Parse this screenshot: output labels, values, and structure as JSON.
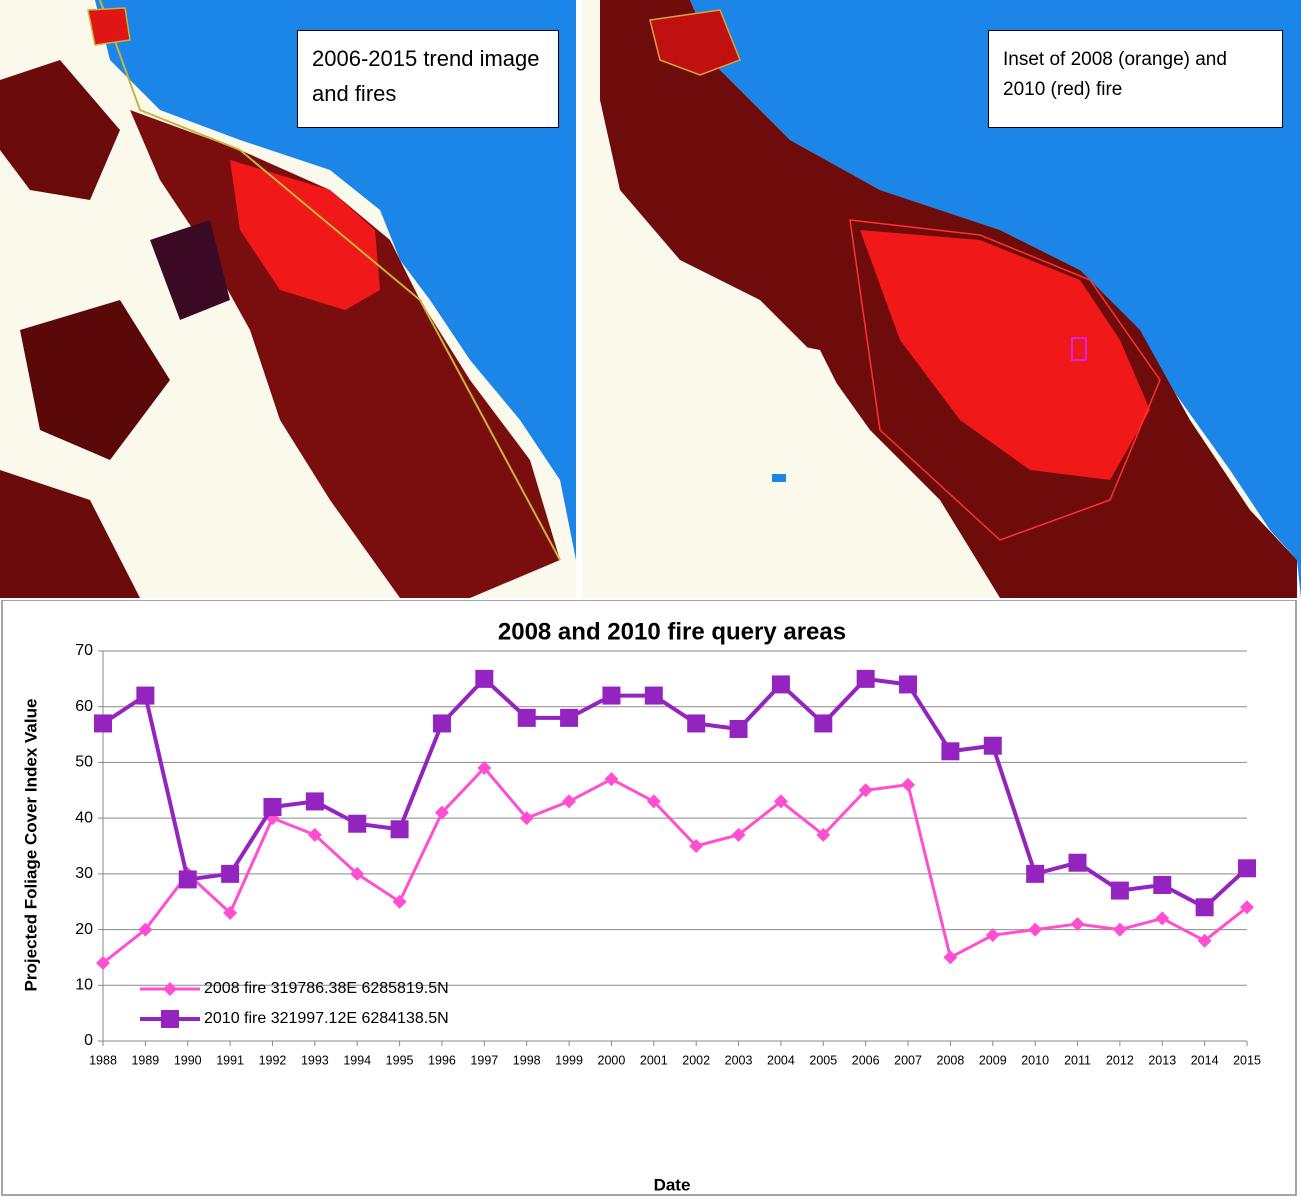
{
  "maps": [
    {
      "label": "2006-2015 trend image and fires"
    },
    {
      "label": "Inset of 2008 (orange) and 2010 (red) fire"
    }
  ],
  "chart_data": {
    "type": "line",
    "title": "2008 and 2010 fire query areas",
    "x_label": "Date",
    "y_label": "Projected Foliage Cover Index Value",
    "categories": [
      "1988",
      "1989",
      "1990",
      "1991",
      "1992",
      "1993",
      "1994",
      "1995",
      "1996",
      "1997",
      "1998",
      "1999",
      "2000",
      "2001",
      "2002",
      "2003",
      "2004",
      "2005",
      "2006",
      "2007",
      "2008",
      "2009",
      "2010",
      "2011",
      "2012",
      "2013",
      "2014",
      "2015"
    ],
    "series": [
      {
        "name": "2008 fire 319786.38E 6285819.5N",
        "color": "#ff4fd0",
        "marker": "diamond",
        "values": [
          14,
          20,
          30,
          23,
          40,
          37,
          30,
          25,
          41,
          49,
          40,
          43,
          47,
          43,
          35,
          37,
          43,
          37,
          45,
          46,
          15,
          19,
          20,
          21,
          20,
          22,
          18,
          24
        ]
      },
      {
        "name": "2010 fire 321997.12E 6284138.5N",
        "color": "#9424c0",
        "marker": "square",
        "values": [
          57,
          62,
          29,
          30,
          42,
          43,
          39,
          38,
          57,
          65,
          58,
          58,
          62,
          62,
          57,
          56,
          64,
          57,
          65,
          64,
          52,
          53,
          30,
          32,
          27,
          28,
          24,
          31
        ]
      }
    ],
    "ylim": [
      0,
      70
    ],
    "yticks": [
      0,
      10,
      20,
      30,
      40,
      50,
      60,
      70
    ],
    "grid": true,
    "legend": "lower left"
  }
}
